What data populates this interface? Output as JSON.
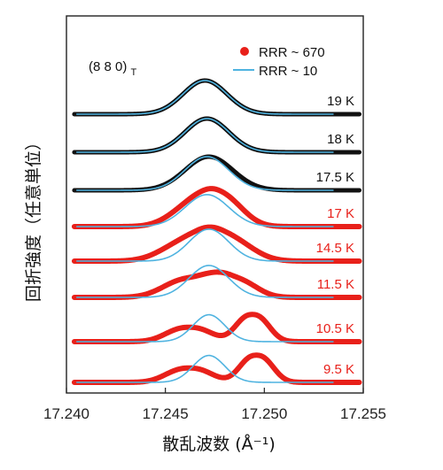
{
  "chart_data": {
    "type": "line",
    "title": "",
    "xlabel": "散乱波数 (Å⁻¹)",
    "ylabel": "回折強度（任意単位）",
    "annotation": "(8 8 0)T",
    "xlim": [
      17.24,
      17.255
    ],
    "x_ticks": [
      "17.240",
      "17.245",
      "17.250",
      "17.255"
    ],
    "legend": {
      "placement": "top-right",
      "entries": [
        {
          "marker": "dot",
          "label": "RRR ~ 670",
          "color": "#e8201a"
        },
        {
          "marker": "line",
          "label": "RRR ~ 10",
          "color": "#4fb3e0"
        }
      ]
    },
    "panels": [
      {
        "label": "19 K",
        "color": "#111111",
        "rrr670": {
          "centers": [
            17.247
          ],
          "widths": [
            0.0011
          ],
          "amps": [
            1.0
          ]
        },
        "rrr10": {
          "centers": [
            17.247
          ],
          "widths": [
            0.0011
          ],
          "amps": [
            1.0
          ]
        }
      },
      {
        "label": "18 K",
        "color": "#111111",
        "rrr670": {
          "centers": [
            17.2471
          ],
          "widths": [
            0.0011
          ],
          "amps": [
            1.0
          ]
        },
        "rrr10": {
          "centers": [
            17.2471
          ],
          "widths": [
            0.0011
          ],
          "amps": [
            1.0
          ]
        }
      },
      {
        "label": "17.5 K",
        "color": "#111111",
        "rrr670": {
          "centers": [
            17.2472
          ],
          "widths": [
            0.0012
          ],
          "amps": [
            1.0
          ]
        },
        "rrr10": {
          "centers": [
            17.2471
          ],
          "widths": [
            0.0011
          ],
          "amps": [
            1.0
          ]
        }
      },
      {
        "label": "17 K",
        "color": "#e8201a",
        "rrr670": {
          "centers": [
            17.2468,
            17.2478
          ],
          "widths": [
            0.0014,
            0.0012
          ],
          "amps": [
            0.7,
            0.55
          ]
        },
        "rrr10": {
          "centers": [
            17.2471
          ],
          "widths": [
            0.0011
          ],
          "amps": [
            0.95
          ]
        }
      },
      {
        "label": "14.5 K",
        "color": "#e8201a",
        "rrr670": {
          "centers": [
            17.2464,
            17.248
          ],
          "widths": [
            0.0015,
            0.0014
          ],
          "amps": [
            0.6,
            0.6
          ]
        },
        "rrr10": {
          "centers": [
            17.2472
          ],
          "widths": [
            0.001
          ],
          "amps": [
            0.95
          ]
        }
      },
      {
        "label": "11.5 K",
        "color": "#e8201a",
        "rrr670": {
          "centers": [
            17.2464,
            17.2485
          ],
          "widths": [
            0.0014,
            0.0011
          ],
          "amps": [
            0.6,
            0.5
          ]
        },
        "rrr10": {
          "centers": [
            17.2472
          ],
          "widths": [
            0.001
          ],
          "amps": [
            0.95
          ]
        }
      },
      {
        "label": "10.5 K",
        "color": "#e8201a",
        "rrr670": {
          "centers": [
            17.2462,
            17.2494
          ],
          "widths": [
            0.0011,
            0.0008
          ],
          "amps": [
            0.45,
            0.85
          ]
        },
        "rrr10": {
          "centers": [
            17.2472
          ],
          "widths": [
            0.0008
          ],
          "amps": [
            0.8
          ]
        }
      },
      {
        "label": "9.5 K",
        "color": "#e8201a",
        "rrr670": {
          "centers": [
            17.2462,
            17.2496
          ],
          "widths": [
            0.0011,
            0.0008
          ],
          "amps": [
            0.45,
            0.85
          ]
        },
        "rrr10": {
          "centers": [
            17.2472
          ],
          "widths": [
            0.0008
          ],
          "amps": [
            0.8
          ]
        }
      }
    ]
  }
}
